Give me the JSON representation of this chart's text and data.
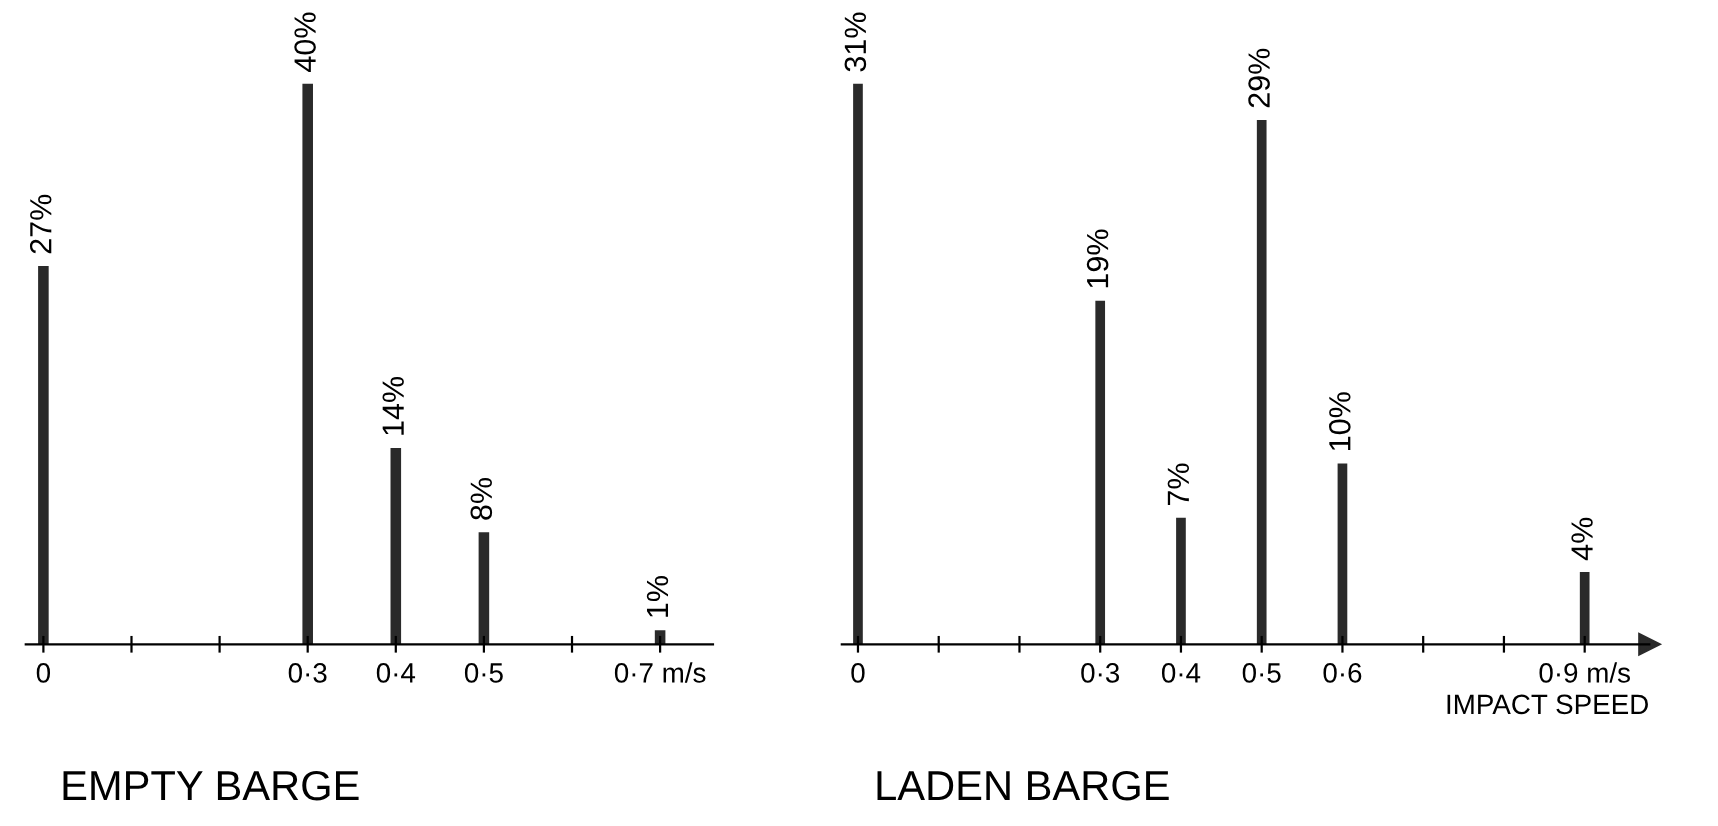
{
  "chart_data": [
    {
      "type": "bar",
      "title": "EMPTY BARGE",
      "categories": [
        "0",
        null,
        null,
        "0·3",
        "0·4",
        "0·5",
        null,
        "0·7 m/s"
      ],
      "values": [
        27,
        null,
        null,
        40,
        14,
        8,
        null,
        1
      ],
      "value_labels": [
        "27%",
        null,
        null,
        "40%",
        "14%",
        "8%",
        null,
        "1%"
      ],
      "color": "#2a2a2a",
      "tick_labels": "x",
      "grid": false
    },
    {
      "type": "bar",
      "title": "LADEN BARGE",
      "xlabel": "IMPACT SPEED",
      "categories": [
        "0",
        null,
        null,
        "0·3",
        "0·4",
        "0·5",
        "0·6",
        null,
        null,
        "0·9 m/s"
      ],
      "values": [
        31,
        null,
        null,
        19,
        7,
        29,
        10,
        null,
        null,
        4
      ],
      "value_labels": [
        "31%",
        null,
        null,
        "19%",
        "7%",
        "29%",
        "10%",
        null,
        null,
        "4%"
      ],
      "color": "#2a2a2a",
      "tick_labels": "x",
      "grid": false
    }
  ]
}
